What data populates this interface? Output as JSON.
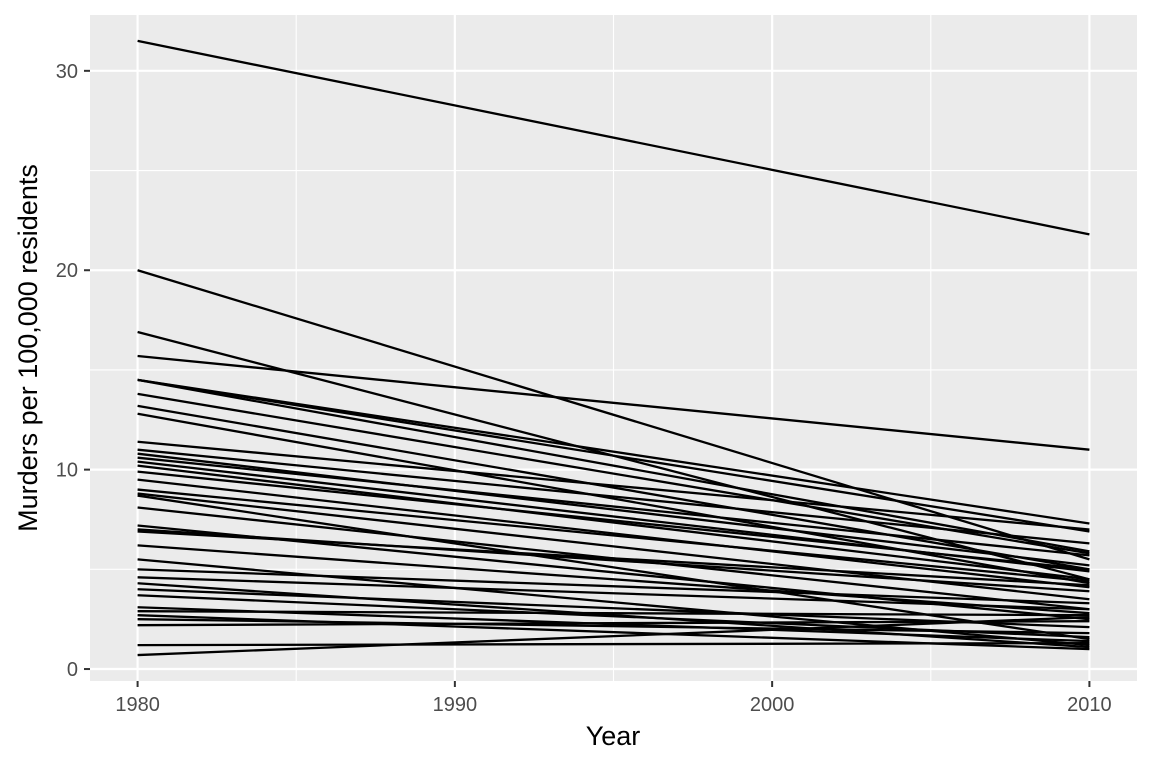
{
  "chart_data": {
    "type": "line",
    "title": "",
    "xlabel": "Year",
    "ylabel": "Murders per 100,000 residents",
    "xlim": [
      1978.5,
      2011.5
    ],
    "ylim": [
      -0.6,
      32.8
    ],
    "x_ticks": [
      1980,
      1990,
      2000,
      2010
    ],
    "y_ticks": [
      0,
      10,
      20,
      30
    ],
    "x_minor": [
      1985,
      1995,
      2005
    ],
    "y_minor": [
      5,
      15,
      25
    ],
    "grid": true,
    "panel_background": "#EBEBEB",
    "grid_color": "#FFFFFF",
    "line_color": "#000000",
    "legend": "none",
    "x": [
      1980,
      2010
    ],
    "series": [
      {
        "values": [
          31.5,
          21.8
        ]
      },
      {
        "values": [
          20.0,
          5.5
        ]
      },
      {
        "values": [
          16.9,
          4.5
        ]
      },
      {
        "values": [
          15.7,
          11.0
        ]
      },
      {
        "values": [
          14.5,
          7.3
        ]
      },
      {
        "values": [
          14.5,
          6.9
        ]
      },
      {
        "values": [
          14.5,
          5.9
        ]
      },
      {
        "values": [
          13.8,
          5.8
        ]
      },
      {
        "values": [
          13.2,
          5.0
        ]
      },
      {
        "values": [
          12.8,
          4.3
        ]
      },
      {
        "values": [
          11.4,
          7.0
        ]
      },
      {
        "values": [
          11.0,
          6.3
        ]
      },
      {
        "values": [
          10.8,
          5.2
        ]
      },
      {
        "values": [
          10.6,
          5.7
        ]
      },
      {
        "values": [
          10.4,
          4.9
        ]
      },
      {
        "values": [
          10.2,
          4.5
        ]
      },
      {
        "values": [
          9.9,
          5.0
        ]
      },
      {
        "values": [
          9.5,
          4.1
        ]
      },
      {
        "values": [
          9.0,
          4.4
        ]
      },
      {
        "values": [
          8.8,
          3.5
        ]
      },
      {
        "values": [
          8.7,
          1.5
        ]
      },
      {
        "values": [
          8.1,
          3.0
        ]
      },
      {
        "values": [
          7.2,
          2.5
        ]
      },
      {
        "values": [
          7.0,
          3.9
        ]
      },
      {
        "values": [
          6.9,
          4.2
        ]
      },
      {
        "values": [
          6.2,
          2.8
        ]
      },
      {
        "values": [
          5.5,
          1.2
        ]
      },
      {
        "values": [
          5.0,
          3.3
        ]
      },
      {
        "values": [
          4.6,
          3.0
        ]
      },
      {
        "values": [
          4.3,
          1.1
        ]
      },
      {
        "values": [
          4.0,
          2.1
        ]
      },
      {
        "values": [
          3.7,
          1.6
        ]
      },
      {
        "values": [
          3.1,
          1.4
        ]
      },
      {
        "values": [
          2.9,
          2.7
        ]
      },
      {
        "values": [
          2.7,
          1.0
        ]
      },
      {
        "values": [
          2.5,
          1.8
        ]
      },
      {
        "values": [
          2.2,
          2.4
        ]
      },
      {
        "values": [
          1.2,
          1.3
        ]
      },
      {
        "values": [
          0.7,
          2.6
        ]
      }
    ]
  }
}
